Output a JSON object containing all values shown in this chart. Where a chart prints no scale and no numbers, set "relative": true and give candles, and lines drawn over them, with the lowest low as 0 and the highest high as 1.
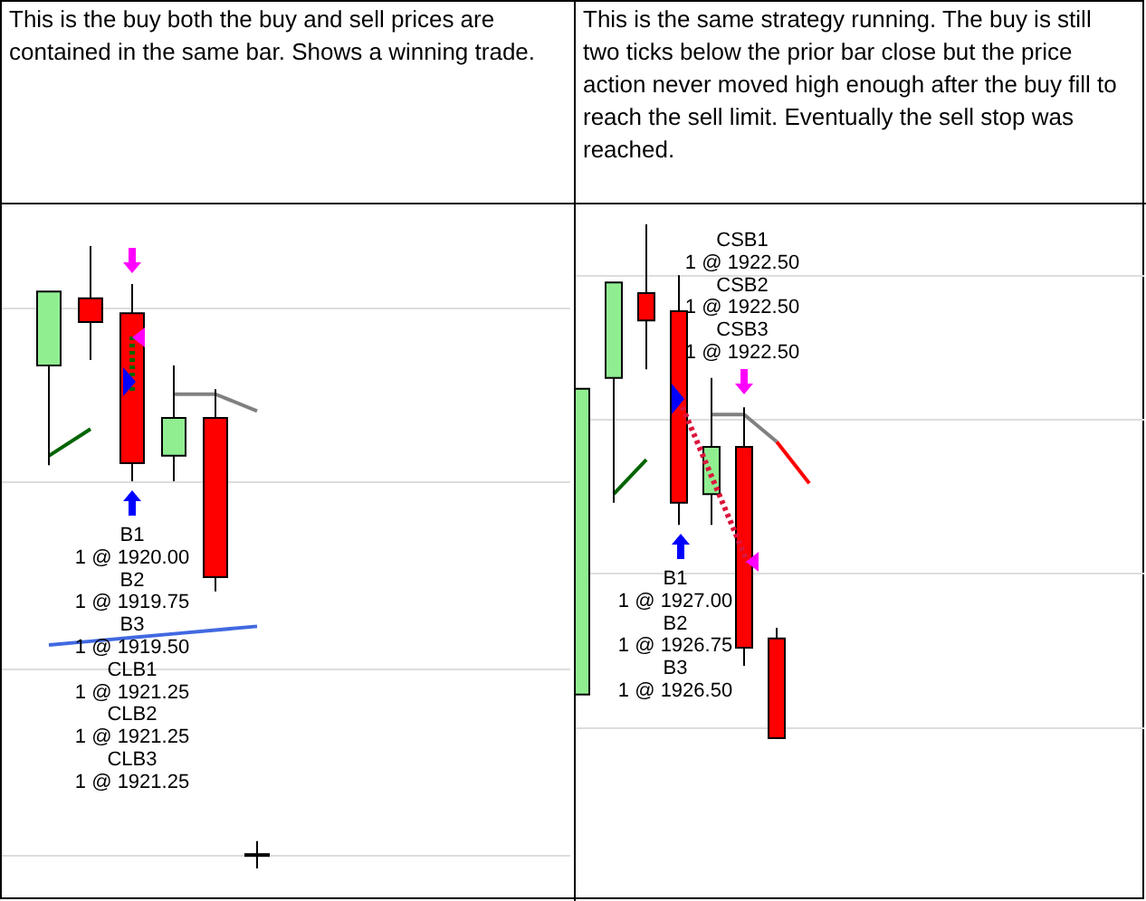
{
  "chart_data": [
    {
      "type": "candlestick",
      "title": "This is the buy both the buy and sell prices are contained in the same bar. Shows a winning trade.",
      "relative": true,
      "categories": [
        null,
        null,
        null,
        null,
        null,
        null
      ],
      "ohlc": [
        [
          0.808,
          0.927,
          0.648,
          0.927
        ],
        [
          0.916,
          1,
          0.817,
          0.878
        ],
        [
          0.892,
          0.939,
          0.622,
          0.651
        ],
        [
          0.663,
          0.808,
          0.622,
          0.724
        ],
        [
          0.724,
          0.77,
          0.445,
          0.468
        ],
        [
          0.023,
          0.044,
          0,
          0.023
        ]
      ],
      "colors": [
        "#90ee90",
        "#ff0000",
        "#ff0000",
        "#90ee90",
        "#ff0000",
        "#ff0000"
      ],
      "series": [
        {
          "type": "line",
          "color": "#006400",
          "values": [
            0.663,
            0.706,
            null,
            null,
            null,
            null
          ]
        },
        {
          "type": "line",
          "color": "#808080",
          "values": [
            null,
            null,
            null,
            0.762,
            0.762,
            0.735
          ]
        },
        {
          "type": "line",
          "color": "#4169e1",
          "values": [
            0.359,
            0.365,
            0.371,
            0.377,
            0.383,
            0.389
          ]
        }
      ],
      "grid": "y",
      "legend": false,
      "annotations": [
        "B1",
        "1 @ 1920.00",
        "B2",
        "1 @ 1919.75",
        "B3",
        "1 @ 1919.50",
        "CLB1",
        "1 @ 1921.25",
        "CLB2",
        "1 @ 1921.25",
        "CLB3",
        "1 @ 1921.25"
      ]
    },
    {
      "type": "candlestick",
      "title": "This is the same strategy running. The buy is still two ticks below the prior bar close but the price action never moved high enough after the buy fill to reach the sell limit. Eventually the sell stop was reached.",
      "relative": true,
      "categories": [
        null,
        null,
        null,
        null,
        null,
        null,
        null,
        null
      ],
      "ohlc": [
        [
          0.085,
          0.68,
          0.085,
          0.68
        ],
        [
          0.701,
          0.887,
          0.458,
          0.887
        ],
        [
          0.866,
          1,
          0.718,
          0.813
        ],
        [
          0.831,
          0.901,
          0.415,
          0.458
        ],
        [
          0.475,
          0.701,
          0.415,
          0.567
        ],
        [
          0.567,
          0.644,
          0.141,
          0.176
        ],
        [
          0.194,
          0.215,
          0,
          0
        ],
        null
      ],
      "colors": [
        "#90ee90",
        "#90ee90",
        "#ff0000",
        "#ff0000",
        "#90ee90",
        "#ff0000",
        "#ff0000",
        null
      ],
      "series": [
        {
          "type": "line",
          "color": "#006400",
          "values": [
            null,
            0.475,
            0.542,
            null,
            null,
            null,
            null,
            null
          ]
        },
        {
          "type": "line",
          "color": "#808080",
          "values": [
            null,
            null,
            null,
            null,
            0.63,
            0.63,
            0.577,
            null
          ]
        },
        {
          "type": "line",
          "color": "#ff0000",
          "values": [
            null,
            null,
            null,
            null,
            null,
            null,
            0.577,
            0.496
          ]
        }
      ],
      "grid": "y",
      "legend": false,
      "annotations": [
        "CSB1",
        "1 @ 1922.50",
        "CSB2",
        "1 @ 1922.50",
        "CSB3",
        "1 @ 1922.50",
        "B1",
        "1 @ 1927.00",
        "B2",
        "1 @ 1926.75",
        "B3",
        "1 @ 1926.50"
      ]
    }
  ]
}
